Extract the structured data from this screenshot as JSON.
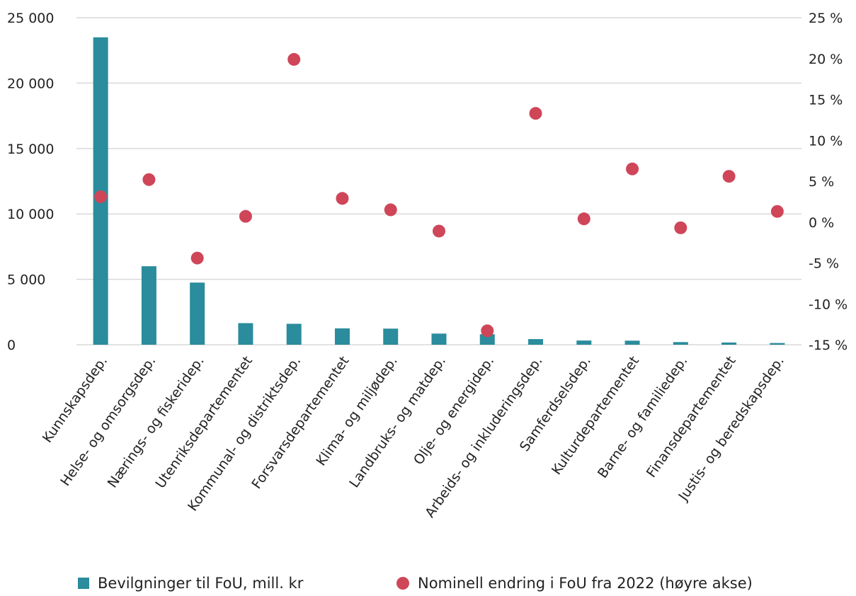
{
  "colors": {
    "bar": "#2a8c9c",
    "dot": "#cf4659",
    "grid": "#d9d9d9",
    "text": "#222222"
  },
  "legend": {
    "bar_label": "Bevilgninger til FoU, mill. kr",
    "dot_label": "Nominell endring i FoU fra 2022 (høyre akse)"
  },
  "chart_data": {
    "type": "bar",
    "categories": [
      "Kunnskapsdep.",
      "Helse- og omsorgsdep.",
      "Nærings- og fiskeridep.",
      "Utenriksdepartementet",
      "Kommunal- og distriktsdep.",
      "Forsvarsdepartementet",
      "Klima- og miljødep.",
      "Landbruks- og matdep.",
      "Olje- og energidep.",
      "Arbeids- og inkluderingsdep.",
      "Samferdselsdep.",
      "Kulturdepartementet",
      "Barne- og familiedep.",
      "Finansdepartementet",
      "Justis- og beredskapsdep."
    ],
    "series": [
      {
        "name": "Bevilgninger til FoU, mill. kr",
        "type": "bar",
        "axis": "left",
        "values": [
          23500,
          6000,
          4750,
          1650,
          1600,
          1250,
          1230,
          850,
          800,
          430,
          320,
          310,
          200,
          170,
          130
        ]
      },
      {
        "name": "Nominell endring i FoU fra 2022 (høyre akse)",
        "type": "scatter",
        "axis": "right",
        "values": [
          3.1,
          5.2,
          -4.4,
          0.7,
          19.9,
          2.9,
          1.5,
          -1.1,
          -13.3,
          13.3,
          0.4,
          6.5,
          -0.7,
          5.6,
          1.3
        ]
      }
    ],
    "y_left": {
      "ylim": [
        0,
        25000
      ],
      "ticks": [
        0,
        5000,
        10000,
        15000,
        20000,
        25000
      ],
      "tick_labels": [
        "0",
        "5 000",
        "10 000",
        "15 000",
        "20 000",
        "25 000"
      ]
    },
    "y_right": {
      "ylim": [
        -15,
        25
      ],
      "ticks": [
        -15,
        -10,
        -5,
        0,
        5,
        10,
        15,
        20,
        25
      ],
      "tick_labels": [
        "-15 %",
        "-10 %",
        "-5 %",
        "0 %",
        "5 %",
        "10 %",
        "15 %",
        "20 %",
        "25 %"
      ]
    },
    "grid": true,
    "legend_position": "bottom"
  }
}
